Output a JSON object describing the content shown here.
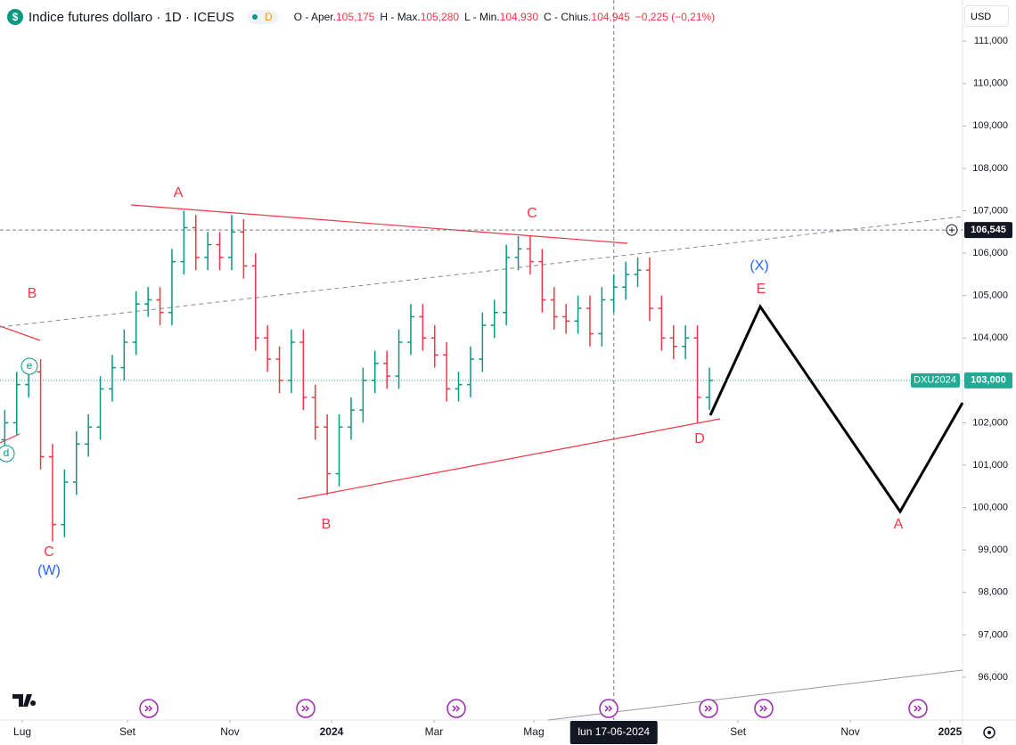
{
  "header": {
    "title": "Indice futures dollaro · 1D · ICEUS",
    "badge": "D",
    "open_label": "O - Aper.",
    "open": "105,175",
    "high_label": "H - Max.",
    "high": "105,280",
    "low_label": "L - Min.",
    "low": "104,930",
    "close_label": "C - Chius.",
    "close": "104,945",
    "change": "−0,225 (−0,21%)",
    "currency": "USD"
  },
  "chart_data": {
    "type": "ohlc",
    "x": [
      0.4,
      1.4,
      2.4,
      3.4,
      4.4,
      5.4,
      6.4,
      7.4,
      8.4,
      9.4,
      10.4,
      11.4,
      12.4,
      13.4,
      14.4,
      15.4,
      16.4,
      17.4,
      18.4,
      19.4,
      20.4,
      21.4,
      22.4,
      23.4,
      24.4,
      25.4,
      26.4,
      27.4,
      28.4,
      29.4,
      30.4,
      31.4,
      32.4,
      33.4,
      34.4,
      35.4,
      36.4,
      37.4,
      38.4,
      39.4,
      40.4,
      41.4,
      42.4,
      43.4,
      44.4,
      45.4,
      46.4,
      47.4,
      48.4,
      49.4,
      50.4,
      51.4,
      52.4,
      53.4,
      54.4,
      55.4,
      56.4,
      57.4,
      58.4,
      59.4
    ],
    "open": [
      101.6,
      102.0,
      102.9,
      103.2,
      101.2,
      99.6,
      100.6,
      101.5,
      101.9,
      102.8,
      103.3,
      103.9,
      104.8,
      104.9,
      104.6,
      105.8,
      106.6,
      105.9,
      106.2,
      105.9,
      106.5,
      105.7,
      104.0,
      103.5,
      103.0,
      103.9,
      102.6,
      101.9,
      100.8,
      101.9,
      102.3,
      103.0,
      103.4,
      103.1,
      103.9,
      104.5,
      104.0,
      103.6,
      102.8,
      102.9,
      103.5,
      104.3,
      104.6,
      105.9,
      106.1,
      105.8,
      104.9,
      104.5,
      104.4,
      104.7,
      104.1,
      104.9,
      105.2,
      105.5,
      105.6,
      104.7,
      104.0,
      103.8,
      104.0,
      102.6
    ],
    "high": [
      102.3,
      103.2,
      103.5,
      103.5,
      101.5,
      100.9,
      101.8,
      102.2,
      103.1,
      103.6,
      104.2,
      105.1,
      105.2,
      105.2,
      106.1,
      107.0,
      106.9,
      106.5,
      106.5,
      106.9,
      106.8,
      106.0,
      104.3,
      103.8,
      104.2,
      104.2,
      102.9,
      102.2,
      102.2,
      102.6,
      103.3,
      103.7,
      103.7,
      104.2,
      104.8,
      104.8,
      104.3,
      103.9,
      103.2,
      103.8,
      104.6,
      104.9,
      106.2,
      106.4,
      106.4,
      106.1,
      105.2,
      104.8,
      105.0,
      105.0,
      105.2,
      105.5,
      105.8,
      105.9,
      105.9,
      105.0,
      104.3,
      104.3,
      104.3,
      103.3
    ],
    "low": [
      101.3,
      101.7,
      102.6,
      100.9,
      99.2,
      99.3,
      100.3,
      101.2,
      101.6,
      102.5,
      103.0,
      103.6,
      104.5,
      104.3,
      104.3,
      105.5,
      105.6,
      105.6,
      105.6,
      105.6,
      105.4,
      103.7,
      103.2,
      102.7,
      102.7,
      102.3,
      101.6,
      100.3,
      100.5,
      101.6,
      102.0,
      102.7,
      102.8,
      102.8,
      103.6,
      103.7,
      103.3,
      102.5,
      102.5,
      102.6,
      103.2,
      104.0,
      104.3,
      105.6,
      105.5,
      104.6,
      104.2,
      104.1,
      104.1,
      103.8,
      103.8,
      104.6,
      104.9,
      105.2,
      104.4,
      103.7,
      103.5,
      103.5,
      102.0,
      102.3
    ],
    "close": [
      102.0,
      102.9,
      103.2,
      101.2,
      99.6,
      100.6,
      101.5,
      101.9,
      102.8,
      103.3,
      103.9,
      104.8,
      104.9,
      104.6,
      105.8,
      106.6,
      105.9,
      106.2,
      105.9,
      106.5,
      105.7,
      104.0,
      103.5,
      103.0,
      103.9,
      102.6,
      101.9,
      100.8,
      101.9,
      102.3,
      103.0,
      103.4,
      103.1,
      103.9,
      104.5,
      104.0,
      103.6,
      102.8,
      102.9,
      103.5,
      104.3,
      104.6,
      105.9,
      106.1,
      105.8,
      104.9,
      104.5,
      104.4,
      104.7,
      104.1,
      104.9,
      105.2,
      105.5,
      105.6,
      104.7,
      104.0,
      103.8,
      104.0,
      102.6,
      103.0
    ],
    "xlim": [
      0,
      80.6
    ],
    "xticks": [
      {
        "value": 1.87,
        "label": "Lug"
      },
      {
        "value": 10.67,
        "label": "Set"
      },
      {
        "value": 19.25,
        "label": "Nov"
      },
      {
        "value": 27.76,
        "label": "2024"
      },
      {
        "value": 36.34,
        "label": "Mar"
      },
      {
        "value": 44.7,
        "label": "Mag"
      },
      {
        "value": 61.8,
        "label": "Set"
      },
      {
        "value": 71.2,
        "label": "Nov"
      },
      {
        "value": 79.55,
        "label": "2025"
      }
    ],
    "ylim": [
      94.99,
      111.97
    ],
    "yticks": [
      {
        "value": 111,
        "label": "111,000"
      },
      {
        "value": 110,
        "label": "110,000"
      },
      {
        "value": 109,
        "label": "109,000"
      },
      {
        "value": 108,
        "label": "108,000"
      },
      {
        "value": 107,
        "label": "107,000"
      },
      {
        "value": 106,
        "label": "106,000"
      },
      {
        "value": 105,
        "label": "105,000"
      },
      {
        "value": 104,
        "label": "104,000"
      },
      {
        "value": 103,
        "label": "103,000"
      },
      {
        "value": 102,
        "label": "102,000"
      },
      {
        "value": 101,
        "label": "101,000"
      },
      {
        "value": 100,
        "label": "100,000"
      },
      {
        "value": 99,
        "label": "99,000"
      },
      {
        "value": 98,
        "label": "98,000"
      },
      {
        "value": 97,
        "label": "97,000"
      },
      {
        "value": 96,
        "label": "96,000"
      }
    ],
    "up_color": "#089981",
    "down_color": "#f23645",
    "level": {
      "value": 106.545,
      "label": "106,545"
    },
    "last": {
      "value": 103,
      "label": "103,000",
      "name": "DXU2024"
    },
    "crosshair": {
      "value": 51.4,
      "label": "lun 17-06-2024"
    },
    "wave_labels": [
      "A",
      "B",
      "C",
      "B",
      "C",
      "(W)",
      "e",
      "d",
      "(X)",
      "E",
      "D",
      "A"
    ]
  }
}
